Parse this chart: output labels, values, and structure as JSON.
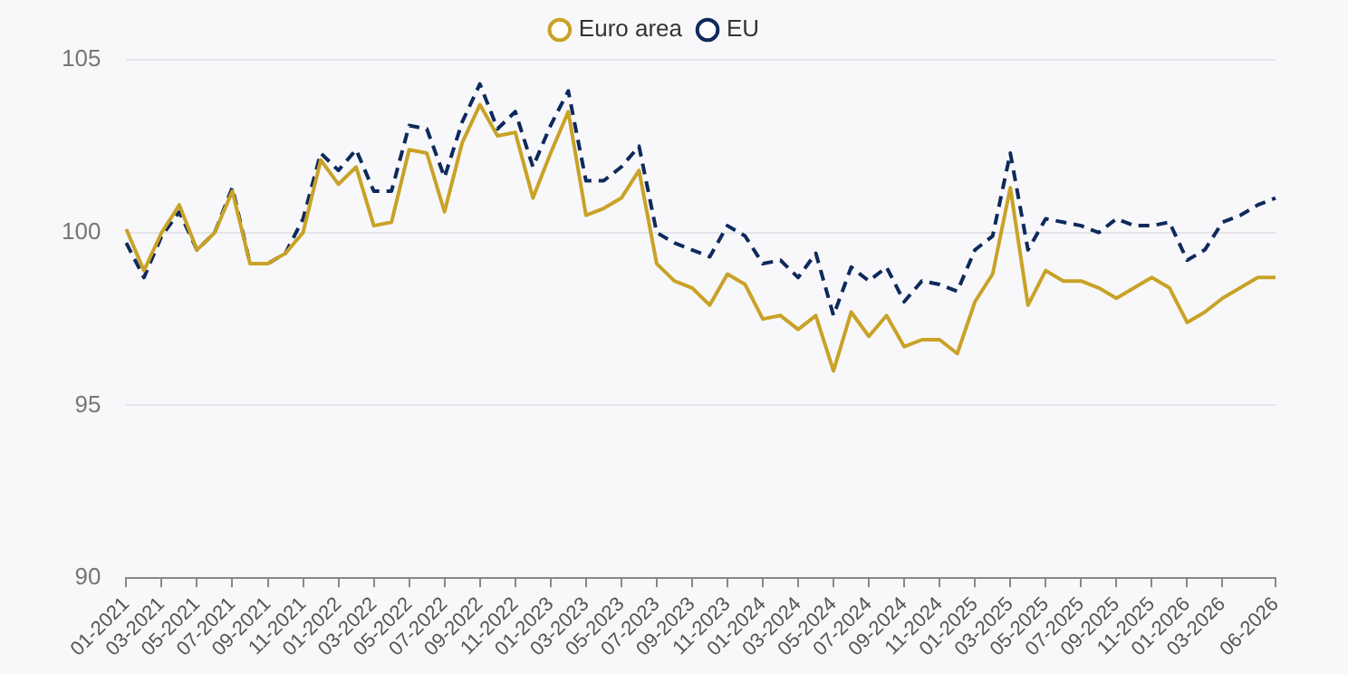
{
  "chart_data": {
    "type": "line",
    "categories": [
      "01-2021",
      null,
      "03-2021",
      null,
      "05-2021",
      null,
      "07-2021",
      null,
      "09-2021",
      null,
      "11-2021",
      null,
      "01-2022",
      null,
      "03-2022",
      null,
      "05-2022",
      null,
      "07-2022",
      null,
      "09-2022",
      null,
      "11-2022",
      null,
      "01-2023",
      null,
      "03-2023",
      null,
      "05-2023",
      null,
      "07-2023",
      null,
      "09-2023",
      null,
      "11-2023",
      null,
      "01-2024",
      null,
      "03-2024",
      null,
      "05-2024",
      null,
      "07-2024",
      null,
      "09-2024",
      null,
      "11-2024",
      null,
      "01-2025",
      null,
      "03-2025",
      null,
      "05-2025",
      null,
      "07-2025",
      null,
      "09-2025",
      null,
      "11-2025",
      null,
      "01-2026",
      null,
      "03-2026",
      null,
      null,
      "06-2026"
    ],
    "series": [
      {
        "name": "Euro area",
        "color": "#c9a227",
        "line_style": "solid",
        "values": [
          100.1,
          98.9,
          100.0,
          100.8,
          99.5,
          100.0,
          101.2,
          99.1,
          99.1,
          99.4,
          100.0,
          102.1,
          101.4,
          101.9,
          100.2,
          100.3,
          102.4,
          102.3,
          100.6,
          102.6,
          103.7,
          102.8,
          102.9,
          101.0,
          102.3,
          103.5,
          100.5,
          100.7,
          101.0,
          101.8,
          99.1,
          98.6,
          98.4,
          97.9,
          98.8,
          98.5,
          97.5,
          97.6,
          97.2,
          97.6,
          96.0,
          97.7,
          97.0,
          97.6,
          96.7,
          96.9,
          96.9,
          96.5,
          98.0,
          98.8,
          101.3,
          97.9,
          98.9,
          98.6,
          98.6,
          98.4,
          98.1,
          98.4,
          98.7,
          98.4,
          97.4,
          97.7,
          98.1,
          98.4,
          98.7,
          98.7
        ]
      },
      {
        "name": "EU",
        "color": "#0e2a5c",
        "line_style": "dashed",
        "values": [
          99.7,
          98.7,
          99.9,
          100.6,
          99.5,
          100.0,
          101.3,
          99.1,
          99.1,
          99.4,
          100.4,
          102.3,
          101.8,
          102.4,
          101.2,
          101.2,
          103.1,
          103.0,
          101.6,
          103.2,
          104.3,
          103.0,
          103.5,
          101.9,
          103.1,
          104.1,
          101.5,
          101.5,
          101.9,
          102.5,
          100.0,
          99.7,
          99.5,
          99.3,
          100.2,
          99.9,
          99.1,
          99.2,
          98.7,
          99.4,
          97.6,
          99.0,
          98.6,
          99.0,
          98.0,
          98.6,
          98.5,
          98.3,
          99.5,
          99.9,
          102.3,
          99.5,
          100.4,
          100.3,
          100.2,
          100.0,
          100.4,
          100.2,
          100.2,
          100.3,
          99.2,
          99.5,
          100.3,
          100.5,
          100.8,
          101.0
        ]
      }
    ],
    "ylim": [
      90,
      105
    ],
    "yticks": [
      90,
      95,
      100,
      105
    ],
    "grid": "y",
    "legend": "top",
    "marker": "none"
  }
}
